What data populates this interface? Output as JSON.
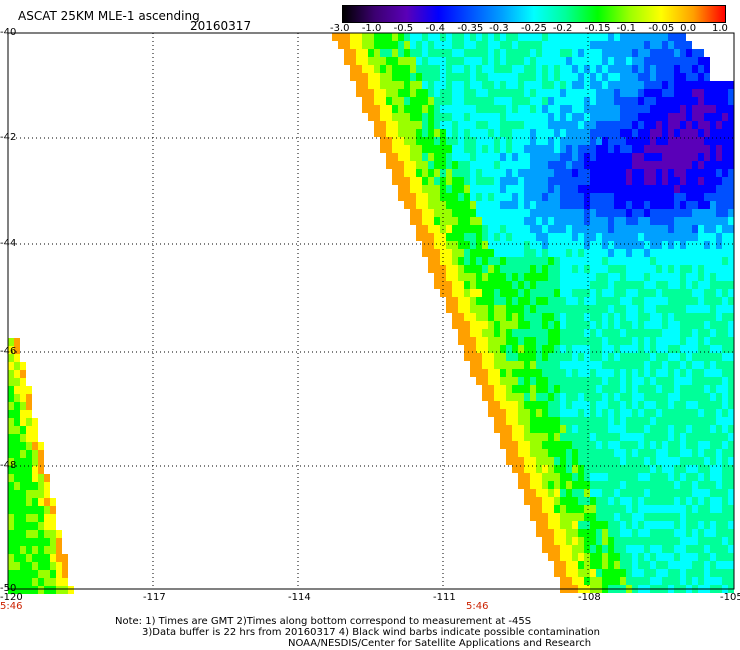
{
  "header": {
    "title": "ASCAT 25KM MLE-1 ascending",
    "date": "20160317"
  },
  "colorbar": {
    "labels": [
      "-3.0",
      "-1.0",
      "-0.5",
      "-0.4",
      "-0.35",
      "-0.3",
      "-0.25",
      "-0.2",
      "-0.15",
      "-0.1",
      "-0.05",
      "0.0",
      "1.0"
    ],
    "colors": [
      "#000000",
      "#3b0070",
      "#5a00b8",
      "#0000ff",
      "#0050ff",
      "#00a0ff",
      "#00ffff",
      "#00ff99",
      "#00ff00",
      "#9aff00",
      "#ffff00",
      "#ffa000",
      "#ff0000"
    ]
  },
  "map": {
    "lat_labels": [
      "-40",
      "-42",
      "-44",
      "-46",
      "-48",
      "-50"
    ],
    "lon_labels": [
      "-120",
      "-117",
      "-114",
      "-111",
      "-108",
      "-105"
    ],
    "time_labels": [
      "5:46",
      "5:46"
    ]
  },
  "notes": {
    "line1": "Note: 1) Times are GMT 2)Times along bottom correspond to measurement at -45S",
    "line2": "3)Data buffer is 22 hrs from 20160317 4) Black wind barbs indicate possible contamination",
    "line3": "NOAA/NESDIS/Center for Satellite Applications and Research"
  }
}
